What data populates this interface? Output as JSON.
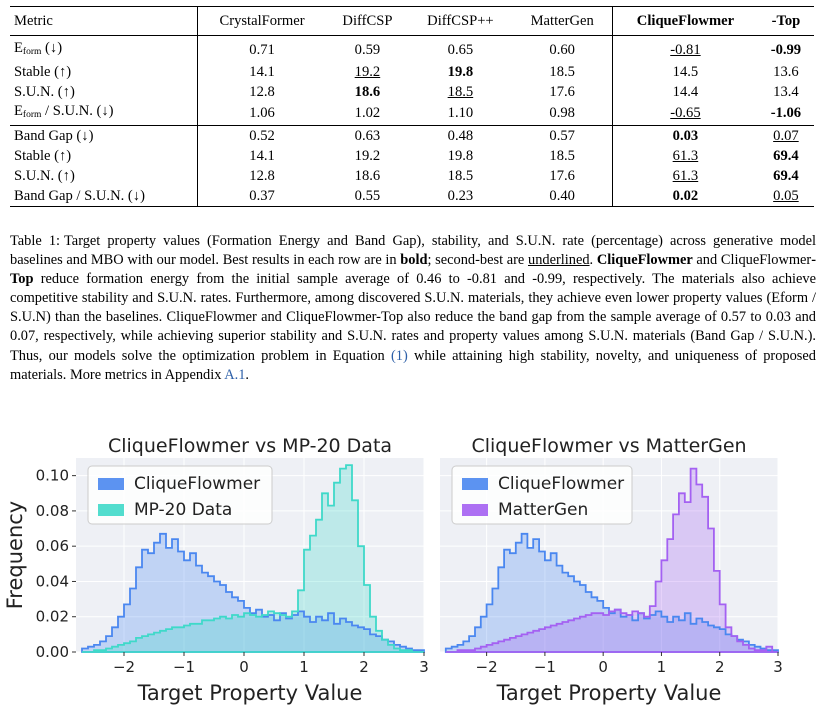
{
  "table": {
    "headers": [
      "Metric",
      "CrystalFormer",
      "DiffCSP",
      "DiffCSP++",
      "MatterGen",
      "CliqueFlowmer",
      "-Top"
    ],
    "rows": [
      {
        "metric": "E",
        "sub": "form",
        "suffix": " (↓)",
        "values": [
          "0.71",
          "0.59",
          "0.65",
          "0.60",
          "-0.81",
          "-0.99"
        ],
        "styles": [
          "",
          "",
          "",
          "",
          "u",
          "b"
        ]
      },
      {
        "metric": "Stable (↑)",
        "values": [
          "14.1",
          "19.2",
          "19.8",
          "18.5",
          "14.5",
          "13.6"
        ],
        "styles": [
          "",
          "u",
          "b",
          "",
          "",
          ""
        ]
      },
      {
        "metric": "S.U.N. (↑)",
        "values": [
          "12.8",
          "18.6",
          "18.5",
          "17.6",
          "14.4",
          "13.4"
        ],
        "styles": [
          "",
          "b",
          "u",
          "",
          "",
          ""
        ]
      },
      {
        "metric": "E",
        "sub": "form",
        "suffix": " / S.U.N. (↓)",
        "values": [
          "1.06",
          "1.02",
          "1.10",
          "0.98",
          "-0.65",
          "-1.06"
        ],
        "styles": [
          "",
          "",
          "",
          "",
          "u",
          "b"
        ]
      },
      {
        "metric": "Band Gap (↓)",
        "values": [
          "0.52",
          "0.63",
          "0.48",
          "0.57",
          "0.03",
          "0.07"
        ],
        "styles": [
          "",
          "",
          "",
          "",
          "b",
          "u"
        ]
      },
      {
        "metric": "Stable (↑)",
        "values": [
          "14.1",
          "19.2",
          "19.8",
          "18.5",
          "61.3",
          "69.4"
        ],
        "styles": [
          "",
          "",
          "",
          "",
          "u",
          "b"
        ]
      },
      {
        "metric": "S.U.N. (↑)",
        "values": [
          "12.8",
          "18.6",
          "18.5",
          "17.6",
          "61.3",
          "69.4"
        ],
        "styles": [
          "",
          "",
          "",
          "",
          "u",
          "b"
        ]
      },
      {
        "metric": "Band Gap / S.U.N. (↓)",
        "values": [
          "0.37",
          "0.55",
          "0.23",
          "0.40",
          "0.02",
          "0.05"
        ],
        "styles": [
          "",
          "",
          "",
          "",
          "b",
          "u"
        ]
      }
    ]
  },
  "caption": {
    "label": "Table 1:",
    "t1": "Target property values (Formation Energy and Band Gap), stability, and S.U.N. rate (percentage) across generative model baselines and MBO with our model. Best results in each row are in ",
    "bold_word": "bold",
    "t2": "; second-best are ",
    "underlined_word": "underlined",
    "t3": ". ",
    "cf1": "CliqueFlowmer",
    "t4": " and CliqueFlowmer",
    "top1": "-Top",
    "t5": " reduce formation energy from the initial sample average of 0.46 to -0.81 and -0.99, respectively. The materials also achieve competitive stability and S.U.N. rates. Furthermore, among discovered S.U.N. materials, they achieve even lower property values (Eform / S.U.N) than the baselines. CliqueFlowmer and CliqueFlowmer-Top also reduce the band gap from the sample average of 0.57 to 0.03 and 0.07, respectively, while achieving superior stability and S.U.N. rates and property values among S.U.N. materials (Band Gap / S.U.N.). Thus, our models solve the optimization problem in Equation ",
    "eqref": "(1)",
    "t6": " while attaining high stability, novelty, and uniqueness of proposed materials. More metrics in Appendix ",
    "appref": "A.1",
    "t7": "."
  },
  "colors": {
    "cliqueflowmer": "#4a87f0",
    "mp20": "#3fd9c9",
    "mattergen": "#a461f2"
  },
  "chart_data": [
    {
      "type": "histogram",
      "title": "CliqueFlowmer vs MP-20 Data",
      "xlabel": "Target Property Value",
      "ylabel": "Frequency",
      "xlim": [
        -2.8,
        3.0
      ],
      "ylim": [
        0,
        0.11
      ],
      "xticks": [
        "−2",
        "−1",
        "0",
        "1",
        "2",
        "3"
      ],
      "yticks": [
        "0.00",
        "0.02",
        "0.04",
        "0.06",
        "0.08",
        "0.10"
      ],
      "legend_position": "top-left",
      "grid": true,
      "bin_start": -2.7,
      "bin_width": 0.1,
      "series": [
        {
          "name": "CliqueFlowmer",
          "values": [
            0.002,
            0.003,
            0.004,
            0.006,
            0.009,
            0.014,
            0.02,
            0.027,
            0.036,
            0.048,
            0.058,
            0.056,
            0.062,
            0.067,
            0.059,
            0.064,
            0.057,
            0.052,
            0.056,
            0.049,
            0.045,
            0.043,
            0.04,
            0.038,
            0.034,
            0.031,
            0.029,
            0.025,
            0.022,
            0.024,
            0.02,
            0.021,
            0.018,
            0.022,
            0.019,
            0.021,
            0.023,
            0.02,
            0.017,
            0.02,
            0.018,
            0.022,
            0.016,
            0.019,
            0.017,
            0.015,
            0.014,
            0.013,
            0.01,
            0.009,
            0.007,
            0.006,
            0.004,
            0.003,
            0.002,
            0.001,
            0.001
          ]
        },
        {
          "name": "MP-20 Data",
          "values": [
            0.0,
            0.0,
            0.001,
            0.001,
            0.002,
            0.003,
            0.004,
            0.005,
            0.006,
            0.008,
            0.009,
            0.01,
            0.011,
            0.012,
            0.013,
            0.014,
            0.014,
            0.015,
            0.016,
            0.016,
            0.018,
            0.018,
            0.019,
            0.02,
            0.019,
            0.021,
            0.02,
            0.022,
            0.021,
            0.02,
            0.021,
            0.023,
            0.022,
            0.021,
            0.02,
            0.023,
            0.035,
            0.058,
            0.066,
            0.075,
            0.09,
            0.083,
            0.096,
            0.104,
            0.106,
            0.086,
            0.06,
            0.038,
            0.02,
            0.012,
            0.007,
            0.004,
            0.002,
            0.001,
            0.001,
            0.0,
            0.0
          ]
        }
      ]
    },
    {
      "type": "histogram",
      "title": "CliqueFlowmer vs MatterGen",
      "xlabel": "Target Property Value",
      "ylabel": "",
      "xlim": [
        -2.8,
        3.0
      ],
      "ylim": [
        0,
        0.11
      ],
      "xticks": [
        "−2",
        "−1",
        "0",
        "1",
        "2",
        "3"
      ],
      "legend_position": "top-left",
      "grid": true,
      "bin_start": -2.7,
      "bin_width": 0.1,
      "series": [
        {
          "name": "CliqueFlowmer",
          "values": [
            0.002,
            0.003,
            0.004,
            0.006,
            0.009,
            0.014,
            0.02,
            0.027,
            0.036,
            0.048,
            0.058,
            0.056,
            0.062,
            0.067,
            0.059,
            0.064,
            0.057,
            0.052,
            0.056,
            0.049,
            0.045,
            0.043,
            0.04,
            0.038,
            0.034,
            0.031,
            0.029,
            0.025,
            0.022,
            0.024,
            0.02,
            0.021,
            0.018,
            0.022,
            0.019,
            0.021,
            0.023,
            0.02,
            0.017,
            0.02,
            0.018,
            0.022,
            0.016,
            0.019,
            0.017,
            0.015,
            0.014,
            0.013,
            0.01,
            0.009,
            0.007,
            0.006,
            0.004,
            0.003,
            0.002,
            0.001,
            0.001
          ]
        },
        {
          "name": "MatterGen",
          "values": [
            0.0,
            0.0,
            0.001,
            0.001,
            0.001,
            0.002,
            0.003,
            0.004,
            0.005,
            0.006,
            0.007,
            0.008,
            0.009,
            0.01,
            0.011,
            0.012,
            0.013,
            0.014,
            0.015,
            0.016,
            0.017,
            0.018,
            0.019,
            0.02,
            0.021,
            0.022,
            0.022,
            0.021,
            0.023,
            0.024,
            0.022,
            0.021,
            0.023,
            0.022,
            0.02,
            0.026,
            0.04,
            0.052,
            0.064,
            0.078,
            0.09,
            0.085,
            0.104,
            0.095,
            0.088,
            0.07,
            0.046,
            0.027,
            0.014,
            0.009,
            0.006,
            0.004,
            0.002,
            0.001,
            0.001,
            0.003,
            0.0
          ]
        }
      ]
    }
  ]
}
